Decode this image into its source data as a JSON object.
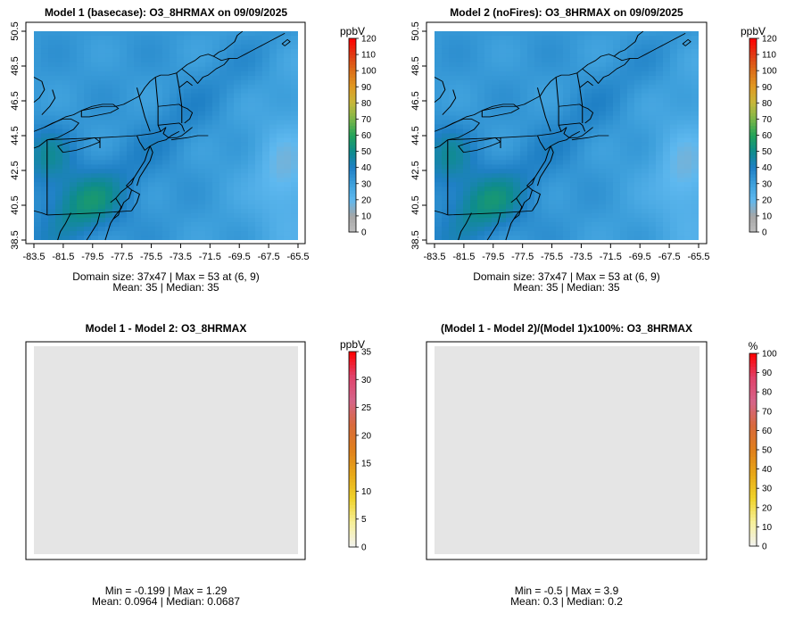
{
  "chart_data": [
    {
      "type": "heatmap",
      "title": "Model 1 (basecase): O3_8HRMAX on 09/09/2025",
      "xticks": [
        "-83.5",
        "-81.5",
        "-79.5",
        "-77.5",
        "-75.5",
        "-73.5",
        "-71.5",
        "-69.5",
        "-67.5",
        "-65.5"
      ],
      "yticks": [
        "38.5",
        "40.5",
        "42.5",
        "44.5",
        "46.5",
        "48.5",
        "50.5"
      ],
      "xlim": [
        -83.5,
        -65.5
      ],
      "ylim": [
        38.5,
        50.5
      ],
      "colorbar": {
        "unit": "ppbV",
        "min": 0,
        "max": 120,
        "ticks": [
          "0",
          "10",
          "20",
          "30",
          "40",
          "50",
          "60",
          "70",
          "80",
          "90",
          "100",
          "110",
          "120"
        ],
        "palette": "ozone"
      },
      "field": "ozone_base",
      "stats": [
        "Domain size: 37x47 | Max = 53 at (6, 9)",
        "Mean: 35 |  Median: 35"
      ]
    },
    {
      "type": "heatmap",
      "title": "Model 2 (noFires): O3_8HRMAX on 09/09/2025",
      "xticks": [
        "-83.5",
        "-81.5",
        "-79.5",
        "-77.5",
        "-75.5",
        "-73.5",
        "-71.5",
        "-69.5",
        "-67.5",
        "-65.5"
      ],
      "yticks": [
        "38.5",
        "40.5",
        "42.5",
        "44.5",
        "46.5",
        "48.5",
        "50.5"
      ],
      "xlim": [
        -83.5,
        -65.5
      ],
      "ylim": [
        38.5,
        50.5
      ],
      "colorbar": {
        "unit": "ppbV",
        "min": 0,
        "max": 120,
        "ticks": [
          "0",
          "10",
          "20",
          "30",
          "40",
          "50",
          "60",
          "70",
          "80",
          "90",
          "100",
          "110",
          "120"
        ],
        "palette": "ozone"
      },
      "field": "ozone_nofire",
      "stats": [
        "Domain size: 37x47 | Max = 53 at (6, 9)",
        "Mean: 35 |  Median: 35"
      ]
    },
    {
      "type": "heatmap",
      "title": "Model 1 - Model 2: O3_8HRMAX",
      "xticks": [],
      "yticks": [],
      "colorbar": {
        "unit": "ppbV",
        "min": 0,
        "max": 35,
        "ticks": [
          "0",
          "5",
          "10",
          "15",
          "20",
          "25",
          "30",
          "35"
        ],
        "palette": "diff"
      },
      "field": "diff_abs",
      "stats": [
        "Min = -0.199 | Max = 1.29",
        "Mean: 0.0964 |  Median: 0.0687"
      ]
    },
    {
      "type": "heatmap",
      "title": "(Model 1 - Model 2)/(Model 1)x100%: O3_8HRMAX",
      "xticks": [],
      "yticks": [],
      "colorbar": {
        "unit": "%",
        "min": 0,
        "max": 100,
        "ticks": [
          "0",
          "10",
          "20",
          "30",
          "40",
          "50",
          "60",
          "70",
          "80",
          "90",
          "100"
        ],
        "palette": "diff"
      },
      "field": "diff_pct",
      "stats": [
        "Min = -0.5 | Max = 3.9",
        "Mean: 0.3 |  Median: 0.2"
      ]
    }
  ],
  "colors": {
    "ozone_palette": [
      "#bdbdbd",
      "#a6a6a6",
      "#5eb8ef",
      "#3d9fdb",
      "#1f80c5",
      "#0e8c8c",
      "#22a35a",
      "#7ab648",
      "#c6b83b",
      "#e09a22",
      "#dc6f1a",
      "#e03a14",
      "#ff0000"
    ],
    "diff_palette": [
      "#f2f2f2",
      "#f7f09a",
      "#f0d22a",
      "#e8a818",
      "#df7f1c",
      "#d86a3c",
      "#d5658a",
      "#e0426a",
      "#ff0000"
    ],
    "map_background": "#e5e5e5",
    "boundary_line": "#000000"
  }
}
